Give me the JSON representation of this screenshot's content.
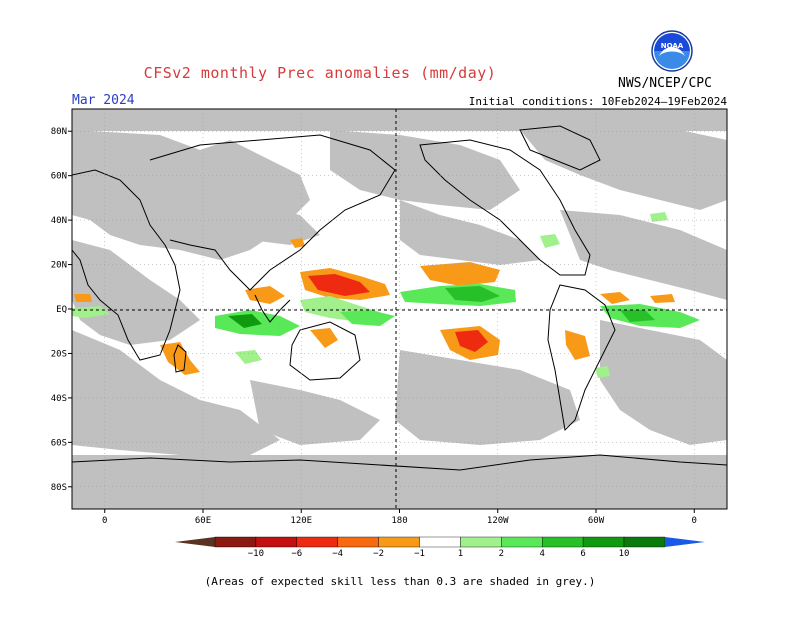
{
  "header": {
    "title": "CFSv2 monthly Prec anomalies (mm/day)",
    "month": "Mar 2024",
    "initial_conditions": "Initial conditions: 10Feb2024–19Feb2024",
    "agency": "NWS/NCEP/CPC",
    "logo_icon": "noaa-logo-icon",
    "logo_text": "NOAA"
  },
  "map": {
    "lat_labels": [
      "80N",
      "60N",
      "40N",
      "20N",
      "EQ",
      "20S",
      "40S",
      "60S",
      "80S"
    ],
    "lat_values": [
      80,
      60,
      40,
      20,
      0,
      -20,
      -40,
      -60,
      -80
    ],
    "lon_labels": [
      "0",
      "60E",
      "120E",
      "180",
      "120W",
      "60W",
      "0"
    ],
    "lon_values": [
      0,
      60,
      120,
      180,
      240,
      300,
      360
    ],
    "lon_range": [
      -20,
      380
    ],
    "lat_range": [
      -90,
      90
    ],
    "grey_color": "#c0c0c0"
  },
  "colorbar": {
    "labels": [
      "−10",
      "−6",
      "−4",
      "−2",
      "−1",
      "1",
      "2",
      "4",
      "6",
      "10"
    ],
    "colors": [
      "#8b1a10",
      "#c41010",
      "#ee2a10",
      "#f86a10",
      "#f89a18",
      "#ffffff",
      "#a0f08c",
      "#58e858",
      "#28c028",
      "#109a10",
      "#0a7a0a"
    ],
    "end_low_color": "#5a3222",
    "end_high_color": "#1a5ae8"
  },
  "footnote": "(Areas of expected skill less than 0.3 are shaded in grey.)"
}
